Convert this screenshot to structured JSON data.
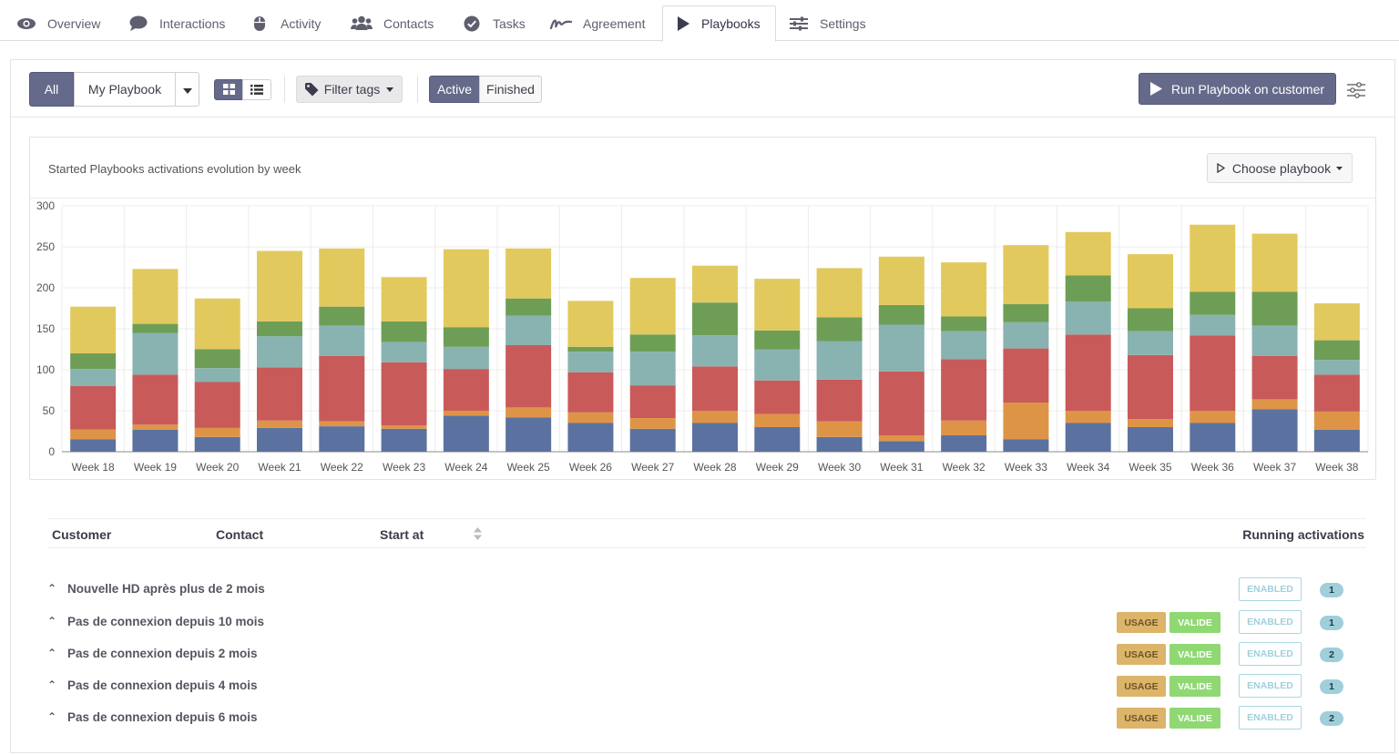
{
  "tabs": [
    {
      "label": "Overview",
      "icon": "eye-icon"
    },
    {
      "label": "Interactions",
      "icon": "chat-bubble-icon"
    },
    {
      "label": "Activity",
      "icon": "mouse-icon"
    },
    {
      "label": "Contacts",
      "icon": "users-icon"
    },
    {
      "label": "Tasks",
      "icon": "check-circle-icon"
    },
    {
      "label": "Agreement",
      "icon": "signature-icon"
    },
    {
      "label": "Playbooks",
      "icon": "play-icon",
      "active": true
    },
    {
      "label": "Settings",
      "icon": "sliders-icon"
    }
  ],
  "toolbar": {
    "all_label": "All",
    "my_playbook_label": "My Playbook",
    "filter_tags_label": "Filter tags",
    "active_label": "Active",
    "finished_label": "Finished",
    "run_label": "Run Playbook on customer"
  },
  "chart_card": {
    "title": "Started Playbooks activations evolution by week",
    "choose_label": "Choose playbook"
  },
  "colors": {
    "accent": "#666a8a",
    "series": [
      "#5b72a0",
      "#de9447",
      "#c95a5a",
      "#89b3b1",
      "#6e9e56",
      "#e2c95e"
    ]
  },
  "chart_data": {
    "type": "bar",
    "stacked": true,
    "ylim": [
      0,
      300
    ],
    "yticks": [
      0,
      50,
      100,
      150,
      200,
      250,
      300
    ],
    "grid": true,
    "categories": [
      "Week 18",
      "Week 19",
      "Week 20",
      "Week 21",
      "Week 22",
      "Week 23",
      "Week 24",
      "Week 25",
      "Week 26",
      "Week 27",
      "Week 28",
      "Week 29",
      "Week 30",
      "Week 31",
      "Week 32",
      "Week 33",
      "Week 34",
      "Week 35",
      "Week 36",
      "Week 37",
      "Week 38"
    ],
    "series": [
      {
        "values": [
          15,
          27,
          18,
          29,
          31,
          28,
          44,
          42,
          35,
          28,
          35,
          30,
          18,
          13,
          20,
          15,
          35,
          30,
          35,
          52,
          27
        ]
      },
      {
        "values": [
          12,
          6,
          11,
          9,
          6,
          4,
          6,
          12,
          13,
          13,
          15,
          16,
          19,
          7,
          18,
          45,
          15,
          10,
          15,
          12,
          22
        ]
      },
      {
        "values": [
          53,
          61,
          56,
          65,
          80,
          77,
          51,
          76,
          49,
          40,
          54,
          41,
          51,
          78,
          75,
          66,
          93,
          78,
          92,
          53,
          45
        ]
      },
      {
        "values": [
          21,
          51,
          17,
          38,
          37,
          25,
          27,
          36,
          25,
          41,
          38,
          38,
          47,
          57,
          34,
          32,
          40,
          29,
          25,
          37,
          18
        ]
      },
      {
        "values": [
          19,
          11,
          23,
          18,
          23,
          25,
          24,
          21,
          6,
          21,
          40,
          23,
          29,
          24,
          18,
          22,
          32,
          28,
          28,
          41,
          24
        ]
      },
      {
        "values": [
          57,
          67,
          62,
          86,
          71,
          54,
          95,
          61,
          56,
          69,
          45,
          63,
          60,
          59,
          66,
          72,
          53,
          66,
          82,
          71,
          45
        ]
      }
    ]
  },
  "table": {
    "headers": {
      "customer": "Customer",
      "contact": "Contact",
      "start_at": "Start at",
      "running": "Running activations"
    },
    "rows": [
      {
        "name": "Nouvelle HD après plus de 2 mois",
        "tags": [],
        "status": "ENABLED",
        "count": "1"
      },
      {
        "name": "Pas de connexion depuis 10 mois",
        "tags": [
          "USAGE",
          "VALIDE"
        ],
        "status": "ENABLED",
        "count": "1"
      },
      {
        "name": "Pas de connexion depuis 2 mois",
        "tags": [
          "USAGE",
          "VALIDE"
        ],
        "status": "ENABLED",
        "count": "2"
      },
      {
        "name": "Pas de connexion depuis 4 mois",
        "tags": [
          "USAGE",
          "VALIDE"
        ],
        "status": "ENABLED",
        "count": "1"
      },
      {
        "name": "Pas de connexion depuis 6 mois",
        "tags": [
          "USAGE",
          "VALIDE"
        ],
        "status": "ENABLED",
        "count": "2"
      }
    ]
  }
}
